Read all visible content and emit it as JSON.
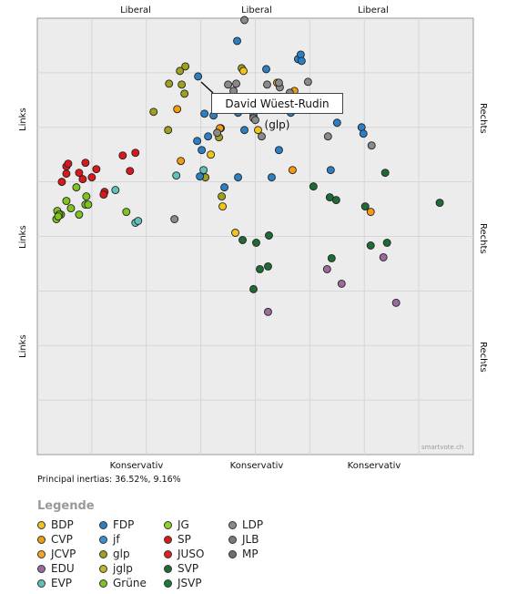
{
  "chart_data": {
    "type": "scatter",
    "title": "",
    "axis_labels": {
      "top": [
        "Liberal",
        "Liberal",
        "Liberal"
      ],
      "bottom": [
        "Konservativ",
        "Konservativ",
        "Konservativ"
      ],
      "left": [
        "Links",
        "Links",
        "Links"
      ],
      "right": [
        "Rechts",
        "Rechts",
        "Rechts"
      ]
    },
    "inertias": "Principal inertias: 36.52%, 9.16%",
    "watermark": "smartvote.ch",
    "tooltip": "David Wüest-Rudin (glp)",
    "tooltip_party": "glp",
    "xlim": [
      0,
      480
    ],
    "ylim": [
      0,
      480
    ],
    "grid": true,
    "legend_title": "Legende",
    "legend_placement": "bottom",
    "legend": [
      {
        "name": "BDP",
        "color": "#f0c419"
      },
      {
        "name": "CVP",
        "color": "#f39c12"
      },
      {
        "name": "JCVP",
        "color": "#f5a623"
      },
      {
        "name": "EDU",
        "color": "#9b6b9b"
      },
      {
        "name": "EVP",
        "color": "#5fc2b8"
      },
      {
        "name": "FDP",
        "color": "#2b7fc4"
      },
      {
        "name": "jf",
        "color": "#3a8fd0"
      },
      {
        "name": "glp",
        "color": "#a0a01e"
      },
      {
        "name": "jglp",
        "color": "#b7b82a"
      },
      {
        "name": "Grüne",
        "color": "#7ec31e"
      },
      {
        "name": "JG",
        "color": "#8fd32a"
      },
      {
        "name": "SP",
        "color": "#d9181c"
      },
      {
        "name": "JUSO",
        "color": "#e02020"
      },
      {
        "name": "SVP",
        "color": "#1f6b36"
      },
      {
        "name": "JSVP",
        "color": "#1a7a3a"
      },
      {
        "name": "LDP",
        "color": "#8a8a8a"
      },
      {
        "name": "JLB",
        "color": "#7a7a7a"
      },
      {
        "name": "MP",
        "color": "#6f6f6f"
      }
    ],
    "series": [
      {
        "name": "SP",
        "points": [
          [
            27,
            180
          ],
          [
            32,
            171
          ],
          [
            32,
            163
          ],
          [
            34,
            160
          ],
          [
            50,
            177
          ],
          [
            46,
            170
          ],
          [
            53,
            159
          ],
          [
            60,
            175
          ],
          [
            65,
            166
          ],
          [
            102,
            168
          ],
          [
            94,
            151
          ],
          [
            108,
            148
          ],
          [
            74,
            191
          ],
          [
            73,
            194
          ]
        ]
      },
      {
        "name": "Grüne",
        "points": [
          [
            21,
            221
          ],
          [
            22,
            212
          ],
          [
            26,
            216
          ],
          [
            32,
            201
          ],
          [
            37,
            209
          ],
          [
            43,
            186
          ],
          [
            54,
            196
          ],
          [
            53,
            205
          ],
          [
            56,
            205
          ],
          [
            46,
            216
          ],
          [
            98,
            213
          ],
          [
            24,
            216
          ],
          [
            23,
            218
          ]
        ]
      },
      {
        "name": "EVP",
        "points": [
          [
            86,
            189
          ],
          [
            108,
            225
          ],
          [
            111,
            223
          ],
          [
            153,
            173
          ],
          [
            183,
            167
          ]
        ]
      },
      {
        "name": "glp",
        "points": [
          [
            128,
            103
          ],
          [
            144,
            123
          ],
          [
            145,
            72
          ],
          [
            157,
            58
          ],
          [
            185,
            175
          ],
          [
            200,
            131
          ],
          [
            200,
            98
          ],
          [
            203,
            196
          ],
          [
            225,
            55
          ],
          [
            159,
            73
          ],
          [
            163,
            53
          ],
          [
            162,
            83
          ]
        ]
      },
      {
        "name": "FDP",
        "points": [
          [
            176,
            135
          ],
          [
            181,
            145
          ],
          [
            179,
            174
          ],
          [
            184,
            105
          ],
          [
            188,
            130
          ],
          [
            194,
            107
          ],
          [
            206,
            186
          ],
          [
            221,
            175
          ],
          [
            221,
            104
          ],
          [
            220,
            25
          ],
          [
            238,
            107
          ],
          [
            252,
            56
          ],
          [
            258,
            175
          ],
          [
            266,
            145
          ],
          [
            279,
            104
          ],
          [
            287,
            45
          ],
          [
            290,
            40
          ],
          [
            291,
            47
          ],
          [
            330,
            115
          ],
          [
            357,
            120
          ],
          [
            359,
            127
          ],
          [
            323,
            167
          ],
          [
            228,
            123
          ],
          [
            177,
            64
          ]
        ]
      },
      {
        "name": "BDP",
        "points": [
          [
            191,
            150
          ],
          [
            204,
            207
          ],
          [
            218,
            236
          ],
          [
            243,
            123
          ],
          [
            227,
            58
          ]
        ]
      },
      {
        "name": "CVP",
        "points": [
          [
            154,
            100
          ],
          [
            158,
            157
          ],
          [
            202,
            121
          ],
          [
            201,
            121
          ],
          [
            264,
            71
          ],
          [
            283,
            80
          ],
          [
            367,
            213
          ],
          [
            281,
            167
          ]
        ]
      },
      {
        "name": "LDP",
        "points": [
          [
            151,
            221
          ],
          [
            198,
            126
          ],
          [
            247,
            130
          ],
          [
            228,
            2
          ],
          [
            219,
            72
          ],
          [
            210,
            73
          ],
          [
            216,
            80
          ],
          [
            238,
            110
          ],
          [
            240,
            112
          ],
          [
            253,
            73
          ],
          [
            267,
            76
          ],
          [
            298,
            70
          ],
          [
            278,
            82
          ],
          [
            266,
            71
          ],
          [
            320,
            130
          ],
          [
            368,
            140
          ]
        ]
      },
      {
        "name": "SVP",
        "points": [
          [
            255,
            239
          ],
          [
            241,
            247
          ],
          [
            226,
            244
          ],
          [
            245,
            276
          ],
          [
            254,
            273
          ],
          [
            238,
            298
          ],
          [
            304,
            185
          ],
          [
            322,
            197
          ],
          [
            329,
            200
          ],
          [
            361,
            207
          ],
          [
            383,
            170
          ],
          [
            367,
            250
          ],
          [
            385,
            247
          ],
          [
            324,
            264
          ],
          [
            443,
            203
          ]
        ]
      },
      {
        "name": "EDU",
        "points": [
          [
            254,
            323
          ],
          [
            319,
            276
          ],
          [
            335,
            292
          ],
          [
            381,
            263
          ],
          [
            395,
            313
          ]
        ]
      }
    ]
  }
}
